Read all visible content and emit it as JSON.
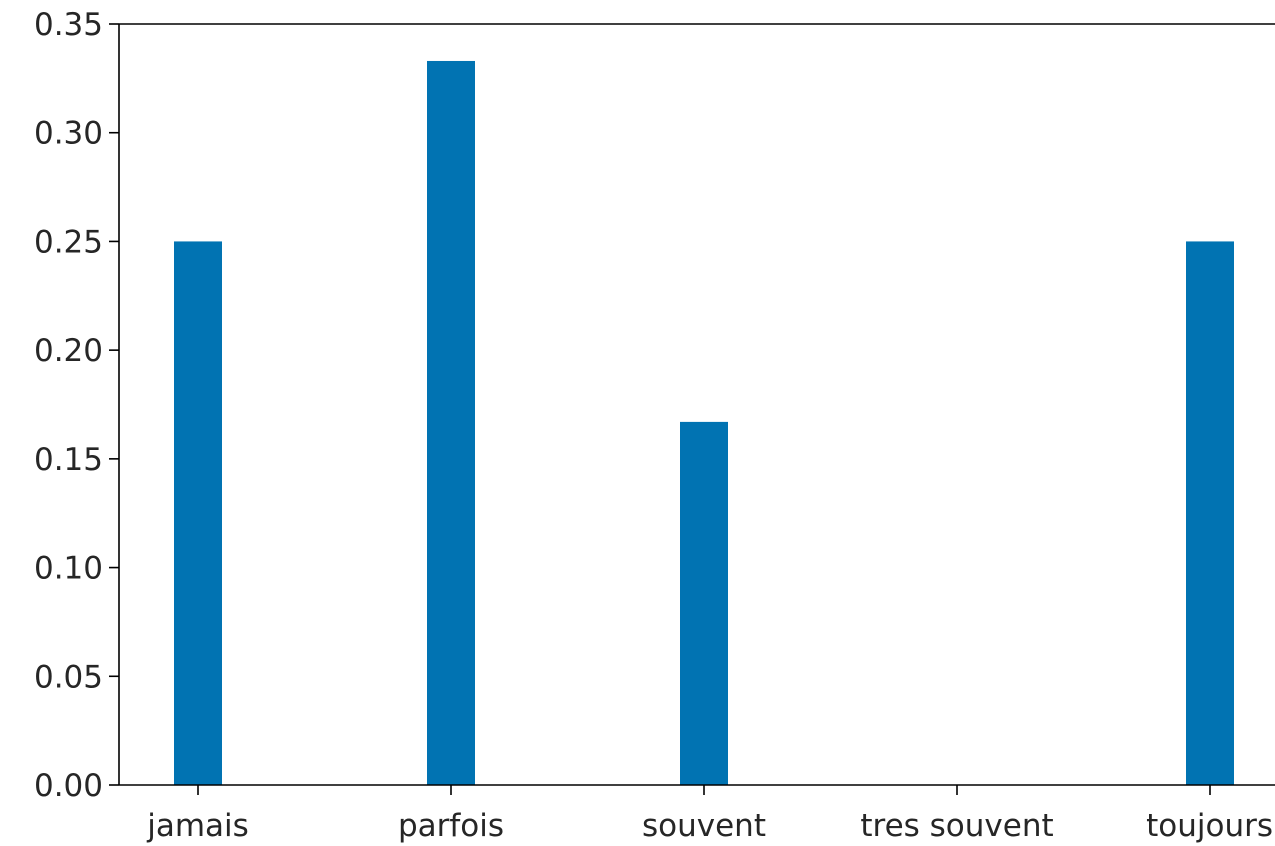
{
  "chart_data": {
    "type": "bar",
    "categories": [
      "jamais",
      "parfois",
      "souvent",
      "tres souvent",
      "toujours"
    ],
    "values": [
      0.25,
      0.333,
      0.167,
      0.0,
      0.25
    ],
    "title": "",
    "xlabel": "",
    "ylabel": "",
    "ylim": [
      0,
      0.35
    ],
    "yticks": [
      "0.00",
      "0.05",
      "0.10",
      "0.15",
      "0.20",
      "0.25",
      "0.30",
      "0.35"
    ],
    "grid": false,
    "bar_color": "#0173b2"
  }
}
